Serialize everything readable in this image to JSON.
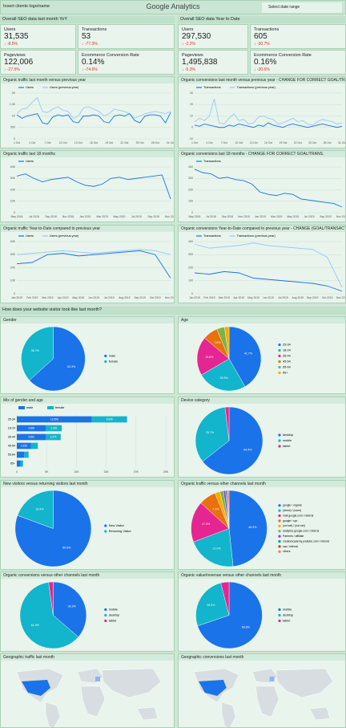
{
  "header": {
    "logo": "Insert clients logo/name",
    "title": "Google Analytics",
    "date_range": "Select date range"
  },
  "kpis": {
    "left": {
      "title": "Overall SEO data last month YoY",
      "items": [
        {
          "label": "Users",
          "value": "31,535",
          "change": "↓ -8.5%"
        },
        {
          "label": "Transactions",
          "value": "53",
          "change": "↓ -77.3%"
        },
        {
          "label": "Pageviews",
          "value": "122,006",
          "change": "↓ -27.5%"
        },
        {
          "label": "Ecommerce Conversion Rate",
          "value": "0.14%",
          "change": "↓ -74.6%"
        }
      ]
    },
    "right": {
      "title": "Overall SEO data Year to Date",
      "items": [
        {
          "label": "Users",
          "value": "297,530",
          "change": "↓ -2.2%"
        },
        {
          "label": "Transactions",
          "value": "605",
          "change": "↓ -30.7%"
        },
        {
          "label": "Pageviews",
          "value": "1,495,838",
          "change": "↓ -5.3%"
        },
        {
          "label": "Ecommerce Conversion Rate",
          "value": "0.16%",
          "change": "↓ -30.6%"
        }
      ]
    }
  },
  "visitor_section": "How does your website visitor look like last month?",
  "chart_data": [
    {
      "type": "line",
      "title": "Organic traffic last month versus previous year",
      "categories": [
        "1 Oct",
        null,
        null,
        "4 Oct",
        null,
        null,
        "7 Oct",
        null,
        null,
        "10 Oct",
        null,
        null,
        "13 Oct",
        null,
        null,
        "16 Oct",
        null,
        null,
        "19 Oct",
        null,
        null,
        "22 Oct",
        null,
        null,
        "25 Oct",
        null,
        null,
        "28 Oct",
        null,
        null,
        "31 Oct"
      ],
      "ylim": [
        0,
        2000
      ],
      "yticks": [
        0,
        500,
        {
          "value": 1000,
          "label": "1K"
        },
        {
          "value": 1500,
          "label": "1.5K"
        },
        {
          "value": 2000,
          "label": "2K"
        }
      ],
      "grid": true,
      "series": [
        {
          "name": "Users",
          "color": "#1a73e8",
          "values": [
            1050,
            900,
            1000,
            1050,
            1100,
            700,
            650,
            950,
            1050,
            1000,
            1050,
            750,
            700,
            1000,
            1000,
            1050,
            1000,
            750,
            700,
            1000,
            1050,
            1000,
            1100,
            800,
            700,
            1000,
            1050,
            1050,
            1000,
            700,
            1150
          ]
        },
        {
          "name": "Users (previous year)",
          "color": "#9cc8f5",
          "values": [
            1100,
            1300,
            1350,
            1600,
            1800,
            1200,
            1150,
            1300,
            1400,
            1250,
            1200,
            900,
            1000,
            1350,
            1400,
            1300,
            1200,
            1000,
            1100,
            1300,
            1250,
            1200,
            1100,
            900,
            1000,
            1100,
            1150,
            1200,
            1150,
            1100,
            1200
          ]
        }
      ]
    },
    {
      "type": "line",
      "title": "Organic conversions last month versus previous year - CHANGE FOR CORRECT GOAL/TRANS.",
      "categories": [
        "1 Oct",
        null,
        null,
        "4 Oct",
        null,
        null,
        "7 Oct",
        null,
        null,
        "10 Oct",
        null,
        null,
        "13 Oct",
        null,
        null,
        "16 Oct",
        null,
        null,
        "19 Oct",
        null,
        null,
        "22 Oct",
        null,
        null,
        "25 Oct",
        null,
        null,
        "28 Oct",
        null,
        null,
        "31 Oct"
      ],
      "ylim": [
        -10,
        30
      ],
      "yticks": [
        -10,
        0,
        10,
        20,
        30
      ],
      "grid": true,
      "series": [
        {
          "name": "Transactions",
          "color": "#1a73e8",
          "values": [
            2,
            1,
            3,
            2,
            1,
            0,
            0,
            2,
            1,
            3,
            2,
            1,
            0,
            2,
            1,
            4,
            2,
            1,
            0,
            2,
            3,
            2,
            1,
            0,
            1,
            2,
            3,
            2,
            1,
            0,
            1
          ]
        },
        {
          "name": "Transactions (previous year)",
          "color": "#9cc8f5",
          "values": [
            5,
            8,
            6,
            10,
            25,
            4,
            3,
            8,
            12,
            6,
            7,
            3,
            4,
            9,
            10,
            8,
            7,
            3,
            4,
            6,
            8,
            5,
            6,
            3,
            2,
            5,
            7,
            6,
            5,
            3,
            4
          ]
        }
      ]
    },
    {
      "type": "line",
      "title": "Organic traffic last 18 months",
      "categories": [
        "May 2018",
        null,
        "Jul 2018",
        null,
        "Sep 2018",
        null,
        "Nov 2018",
        null,
        "Jan 2019",
        null,
        "Mar 2019",
        null,
        "May 2019",
        null,
        "Jul 2019",
        null,
        "Sep 2019",
        null,
        "Nov 20…"
      ],
      "ylim": [
        0,
        40000
      ],
      "yticks": [
        0,
        {
          "value": 10000,
          "label": "10K"
        },
        {
          "value": 20000,
          "label": "20K"
        },
        {
          "value": 30000,
          "label": "30K"
        },
        {
          "value": 40000,
          "label": "40K"
        }
      ],
      "grid": true,
      "series": [
        {
          "name": "Users",
          "color": "#1a73e8",
          "values": [
            32000,
            34000,
            30000,
            27000,
            29000,
            30000,
            31000,
            27000,
            24000,
            23000,
            25000,
            30000,
            31000,
            29000,
            30000,
            31000,
            32000,
            33000,
            12000
          ]
        }
      ]
    },
    {
      "type": "line",
      "title": "Organic conversions last 18 months - CHANGE FOR CORRECT GOAL/TRANS.",
      "categories": [
        "May 2018",
        null,
        "Jul 2018",
        null,
        "Sep 2018",
        null,
        "Nov 2018",
        null,
        "Jan 2019",
        null,
        "Mar 2019",
        null,
        "May 2019",
        null,
        "Jul 2019",
        null,
        "Sep 2019",
        null,
        "Nov 20…"
      ],
      "ylim": [
        0,
        400
      ],
      "yticks": [
        0,
        100,
        200,
        300,
        400
      ],
      "grid": true,
      "series": [
        {
          "name": "Transactions",
          "color": "#1a73e8",
          "values": [
            380,
            350,
            340,
            300,
            310,
            290,
            280,
            250,
            180,
            160,
            150,
            170,
            160,
            120,
            110,
            100,
            90,
            80,
            50
          ]
        }
      ]
    },
    {
      "type": "line",
      "title": "Organic traffic Year-to-Date compared to previous year",
      "categories": [
        "Jan 2019",
        "Feb 2019",
        "Mar 2019",
        "Apr 2019",
        "May 2019",
        "Jun 2019",
        "Jul 2019",
        "Aug 2019",
        "Sep 2019",
        "Oct 2019",
        "Nov 20…"
      ],
      "ylim": [
        0,
        40000
      ],
      "yticks": [
        0,
        {
          "value": 10000,
          "label": "10K"
        },
        {
          "value": 20000,
          "label": "20K"
        },
        {
          "value": 30000,
          "label": "30K"
        },
        {
          "value": 40000,
          "label": "40K"
        }
      ],
      "grid": true,
      "series": [
        {
          "name": "Users",
          "color": "#1a73e8",
          "values": [
            23000,
            24000,
            30000,
            31000,
            29000,
            30000,
            31000,
            32000,
            33000,
            30000,
            12000
          ]
        },
        {
          "name": "Users (previous year)",
          "color": "#9cc8f5",
          "values": [
            30000,
            31000,
            32000,
            33000,
            32000,
            31000,
            32000,
            33000,
            34000,
            33000,
            30000
          ]
        }
      ]
    },
    {
      "type": "line",
      "title": "Organic conversions Year-to-Date compared to previous year - CHANGE (GOAL/TRANSACTION)",
      "categories": [
        "Jan 2019",
        "Feb 2019",
        "Mar 2019",
        "Apr 2019",
        "May 2019",
        "Jun 2019",
        "Jul 2019",
        "Aug 2019",
        "Sep 2019",
        "Oct 2019",
        "Nov 20…"
      ],
      "ylim": [
        0,
        400
      ],
      "yticks": [
        0,
        100,
        200,
        300,
        400
      ],
      "grid": true,
      "series": [
        {
          "name": "Transactions",
          "color": "#1a73e8",
          "values": [
            160,
            150,
            170,
            160,
            120,
            110,
            100,
            90,
            80,
            60,
            20
          ]
        },
        {
          "name": "Transactions (previous year)",
          "color": "#9cc8f5",
          "values": [
            380,
            350,
            360,
            370,
            390,
            370,
            360,
            350,
            340,
            280,
            50
          ]
        }
      ]
    },
    {
      "type": "pie",
      "title": "Gender",
      "categories": [
        "male",
        "female"
      ],
      "values": [
        63.3,
        36.7
      ],
      "value_labels": [
        "63.3%",
        "36.7%"
      ],
      "colors": [
        "#1a73e8",
        "#12b5cb"
      ]
    },
    {
      "type": "pie",
      "title": "Age",
      "categories": [
        "25-34",
        "18-24",
        "35-44",
        "45-54",
        "55-64",
        "65+"
      ],
      "values": [
        41.7,
        24.9,
        19.6,
        7.6,
        3.9,
        2.3
      ],
      "value_labels": [
        "41.7%",
        "24.9%",
        "19.6%",
        "7.6%",
        null,
        null
      ],
      "colors": [
        "#1a73e8",
        "#12b5cb",
        "#e52592",
        "#e8710a",
        "#7cb342",
        "#f9ab00"
      ]
    },
    {
      "type": "bar",
      "horizontal": true,
      "title": "Mix of gender and age",
      "categories": [
        "25-34",
        "18-24",
        "35-44",
        "45-54",
        "55-64",
        "65+"
      ],
      "xlim": [
        0,
        25000
      ],
      "xticks": [
        0,
        {
          "value": 5000,
          "label": "5K"
        },
        {
          "value": 10000,
          "label": "10K"
        },
        {
          "value": 15000,
          "label": "15K"
        },
        {
          "value": 20000,
          "label": "20K"
        },
        {
          "value": 25000,
          "label": "25K"
        }
      ],
      "series": [
        {
          "name": "male",
          "color": "#1a73e8",
          "values": [
            12596,
            4890,
            4891,
            2358,
            1249,
            637
          ],
          "value_labels": [
            "12,596",
            "4,890",
            "4,891",
            "2,358",
            "1,249",
            "637"
          ]
        },
        {
          "name": "female",
          "color": "#12b5cb",
          "values": [
            5906,
            2639,
            2476,
            1163,
            720,
            410
          ],
          "value_labels": [
            "5,906",
            "2,639",
            "2,476",
            "1,163",
            "720",
            "410"
          ]
        }
      ]
    },
    {
      "type": "pie",
      "title": "Device category",
      "categories": [
        "desktop",
        "mobile",
        "tablet"
      ],
      "values": [
        64.4,
        33.7,
        1.9
      ],
      "value_labels": [
        "64.4%",
        "33.7%",
        null
      ],
      "colors": [
        "#1a73e8",
        "#12b5cb",
        "#e52592"
      ]
    },
    {
      "type": "pie",
      "title": "New visitors versus returning visitors last month",
      "categories": [
        "New Visitor",
        "Returning Visitor"
      ],
      "values": [
        80.6,
        19.4
      ],
      "value_labels": [
        "80.6%",
        "19.4%"
      ],
      "colors": [
        "#1a73e8",
        "#12b5cb"
      ]
    },
    {
      "type": "pie",
      "title": "Organic traffic versus other channels last month",
      "categories": [
        "google / organic",
        "(direct) / (none)",
        "mail.google.com / referral",
        "google / cpc",
        "(not set) / (not set)",
        "analytics.google.com / referral",
        "Partners / affiliate",
        "creatoracademy.youtube.com / referral",
        "sas / referral",
        "others"
      ],
      "values": [
        48.3,
        21.0,
        17.4,
        7.3,
        2.1,
        1.5,
        0.9,
        0.6,
        0.4,
        0.5
      ],
      "value_labels": [
        "48.3%",
        "21.0%",
        "17.4%",
        "7.3%",
        null,
        null,
        null,
        null,
        null,
        null
      ],
      "colors": [
        "#1a73e8",
        "#12b5cb",
        "#e52592",
        "#e8710a",
        "#f9ab00",
        "#7cb342",
        "#9334e6",
        "#0097a7",
        "#d93025",
        "#ff7043"
      ]
    },
    {
      "type": "pie",
      "title": "Organic conversions versus other channels last month",
      "categories": [
        "mobile",
        "desktop",
        "tablet"
      ],
      "values": [
        36.3,
        61.5,
        2.2
      ],
      "value_labels": [
        "36.3%",
        "61.5%",
        null
      ],
      "colors": [
        "#1a73e8",
        "#12b5cb",
        "#e52592"
      ]
    },
    {
      "type": "pie",
      "title": "Organic value/revenue versus other channels last month",
      "categories": [
        "mobile",
        "desktop",
        "tablet"
      ],
      "values": [
        69.8,
        26.2,
        4.0
      ],
      "value_labels": [
        "69.8%",
        "26.2%",
        null
      ],
      "colors": [
        "#1a73e8",
        "#12b5cb",
        "#e52592"
      ]
    }
  ],
  "maps": [
    {
      "title": "Geographic traffic last month"
    },
    {
      "title": "Geographic conversions last month"
    }
  ]
}
